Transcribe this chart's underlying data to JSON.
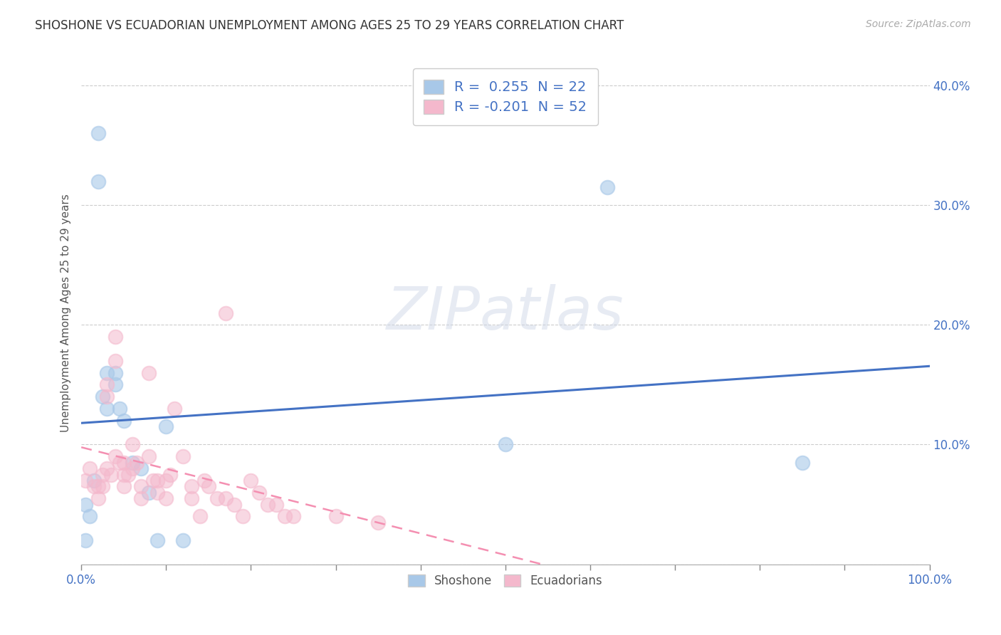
{
  "title": "SHOSHONE VS ECUADORIAN UNEMPLOYMENT AMONG AGES 25 TO 29 YEARS CORRELATION CHART",
  "source": "Source: ZipAtlas.com",
  "ylabel": "Unemployment Among Ages 25 to 29 years",
  "xmin": 0.0,
  "xmax": 1.0,
  "ymin": 0.0,
  "ymax": 0.42,
  "shoshone_R": 0.255,
  "shoshone_N": 22,
  "ecuadorian_R": -0.201,
  "ecuadorian_N": 52,
  "shoshone_color": "#A8C8E8",
  "ecuadorian_color": "#F4B8CC",
  "shoshone_line_color": "#4472C4",
  "ecuadorian_line_color": "#F48FB1",
  "watermark_zip": "ZIP",
  "watermark_atlas": "atlas",
  "legend_labels": [
    "Shoshone",
    "Ecuadorians"
  ],
  "shoshone_x": [
    0.005,
    0.01,
    0.015,
    0.02,
    0.02,
    0.025,
    0.03,
    0.03,
    0.04,
    0.04,
    0.045,
    0.05,
    0.06,
    0.07,
    0.08,
    0.09,
    0.1,
    0.12,
    0.5,
    0.62,
    0.85,
    0.005
  ],
  "shoshone_y": [
    0.05,
    0.04,
    0.07,
    0.36,
    0.32,
    0.14,
    0.13,
    0.16,
    0.16,
    0.15,
    0.13,
    0.12,
    0.085,
    0.08,
    0.06,
    0.02,
    0.115,
    0.02,
    0.1,
    0.315,
    0.085,
    0.02
  ],
  "ecuadorian_x": [
    0.005,
    0.01,
    0.015,
    0.02,
    0.02,
    0.025,
    0.025,
    0.03,
    0.03,
    0.03,
    0.035,
    0.04,
    0.04,
    0.04,
    0.045,
    0.05,
    0.05,
    0.05,
    0.055,
    0.06,
    0.06,
    0.065,
    0.07,
    0.07,
    0.08,
    0.08,
    0.085,
    0.09,
    0.09,
    0.1,
    0.1,
    0.105,
    0.11,
    0.12,
    0.13,
    0.13,
    0.14,
    0.145,
    0.15,
    0.16,
    0.17,
    0.18,
    0.19,
    0.2,
    0.21,
    0.22,
    0.23,
    0.24,
    0.25,
    0.3,
    0.35,
    0.17
  ],
  "ecuadorian_y": [
    0.07,
    0.08,
    0.065,
    0.065,
    0.055,
    0.075,
    0.065,
    0.15,
    0.14,
    0.08,
    0.075,
    0.19,
    0.17,
    0.09,
    0.085,
    0.085,
    0.075,
    0.065,
    0.075,
    0.1,
    0.08,
    0.085,
    0.065,
    0.055,
    0.16,
    0.09,
    0.07,
    0.07,
    0.06,
    0.07,
    0.055,
    0.075,
    0.13,
    0.09,
    0.065,
    0.055,
    0.04,
    0.07,
    0.065,
    0.055,
    0.055,
    0.05,
    0.04,
    0.07,
    0.06,
    0.05,
    0.05,
    0.04,
    0.04,
    0.04,
    0.035,
    0.21
  ]
}
